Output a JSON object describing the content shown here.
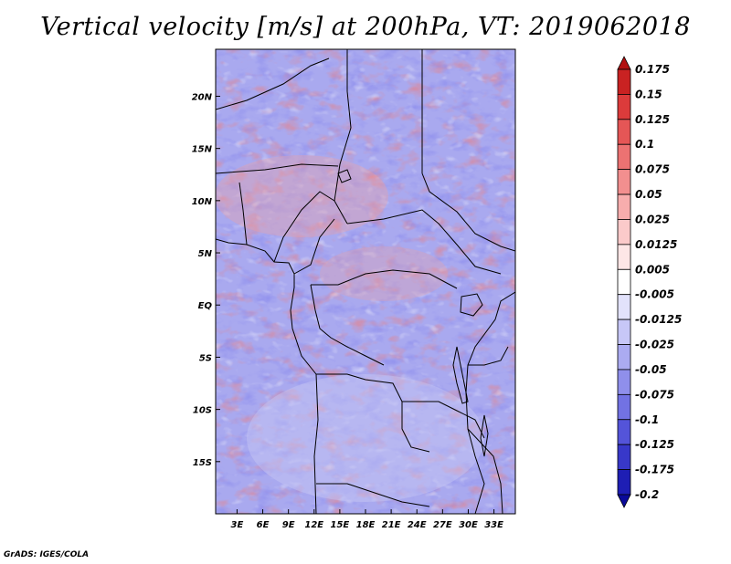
{
  "chart_data": {
    "type": "heatmap",
    "title": "Vertical velocity [m/s] at 200hPa, VT: 2019062018",
    "variable": "Vertical velocity",
    "units": "m/s",
    "level": "200hPa",
    "valid_time": "2019062018",
    "x_ticks": [
      "3E",
      "6E",
      "9E",
      "12E",
      "15E",
      "18E",
      "21E",
      "24E",
      "27E",
      "30E",
      "33E"
    ],
    "x_values": [
      3,
      6,
      9,
      12,
      15,
      18,
      21,
      24,
      27,
      30,
      33
    ],
    "y_ticks": [
      "20N",
      "15N",
      "10N",
      "5N",
      "EQ",
      "5S",
      "10S",
      "15S"
    ],
    "y_values": [
      20,
      15,
      10,
      5,
      0,
      -5,
      -10,
      -15
    ],
    "lon_range": [
      0.5,
      35.5
    ],
    "lat_range": [
      -20,
      24.5
    ],
    "colorbar": {
      "labels": [
        "0.175",
        "0.15",
        "0.125",
        "0.1",
        "0.075",
        "0.05",
        "0.025",
        "0.0125",
        "0.005",
        "-0.005",
        "-0.0125",
        "-0.025",
        "-0.05",
        "-0.075",
        "-0.1",
        "-0.125",
        "-0.175",
        "-0.2"
      ],
      "colors": [
        "#b21010",
        "#c92222",
        "#dc3b3b",
        "#e55656",
        "#ec7272",
        "#f28f8f",
        "#f7adad",
        "#fbcaca",
        "#fde6e6",
        "#ffffff",
        "#e2e2fb",
        "#c7c7f7",
        "#ababf1",
        "#8f8feb",
        "#7272e3",
        "#5454d9",
        "#3838c9",
        "#1e1eb4",
        "#0a0a9a"
      ]
    }
  },
  "footer": "GrADS: IGES/COLA"
}
